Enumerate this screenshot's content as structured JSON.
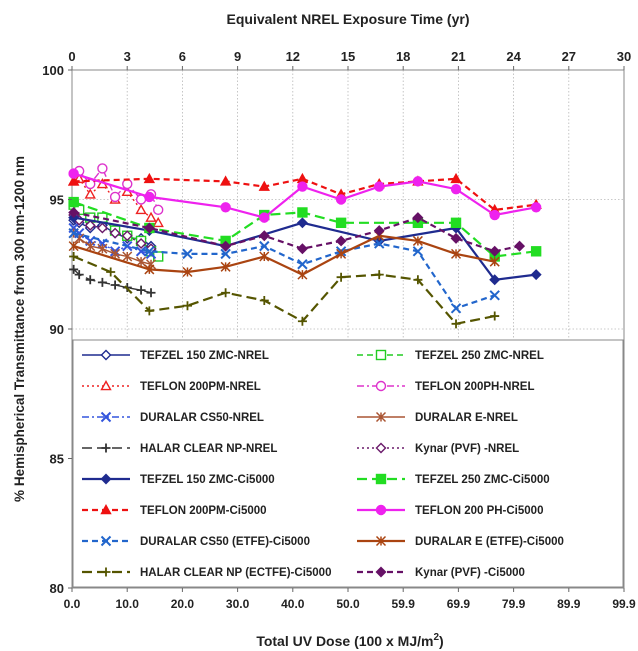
{
  "chart_data": {
    "type": "line",
    "title": "",
    "top_axis_label": "Equivalent  NREL Exposure Time (yr)",
    "top_ticks": [
      "0",
      "3",
      "6",
      "9",
      "12",
      "15",
      "18",
      "21",
      "24",
      "27",
      "30"
    ],
    "xlabel": "Total UV Dose  (100 x MJ/m2)",
    "xlabel_main": "Total UV Dose  (100 x MJ/m",
    "xlabel_sup": "2",
    "xlabel_end": ")",
    "x_ticks": [
      "0.0",
      "10.0",
      "20.0",
      "30.0",
      "40.0",
      "50.0",
      "59.9",
      "69.9",
      "79.9",
      "89.9",
      "99.9"
    ],
    "xlim": [
      0,
      99.9
    ],
    "ylabel": "% Hemispherical Transmittance from 300 nm-1200 nm",
    "y_ticks": [
      "80",
      "85",
      "90",
      "95",
      "100"
    ],
    "ylim": [
      80,
      100
    ],
    "grid": "dotted horizontal and vertical",
    "legend_position": "lower half of plot area, two columns",
    "series": [
      {
        "name": "TEFZEL 150 ZMC-NREL",
        "color": "#1f2b8f",
        "dash": "solid",
        "marker": "diamond-open",
        "points": [
          [
            0.3,
            94.2
          ],
          [
            1.3,
            94.1
          ],
          [
            3.3,
            93.9
          ],
          [
            5.5,
            94.0
          ],
          [
            7.8,
            93.7
          ],
          [
            10.0,
            93.5
          ],
          [
            12.5,
            93.5
          ],
          [
            14.3,
            93.2
          ]
        ]
      },
      {
        "name": "TEFZEL 250 ZMC-NREL",
        "color": "#22cc22",
        "dash": "dash",
        "marker": "square-open",
        "points": [
          [
            0.3,
            94.8
          ],
          [
            1.3,
            94.6
          ],
          [
            3.3,
            94.3
          ],
          [
            5.5,
            94.3
          ],
          [
            7.8,
            93.8
          ],
          [
            10.0,
            93.6
          ],
          [
            12.5,
            93.4
          ],
          [
            14.3,
            93.0
          ],
          [
            15.6,
            92.8
          ]
        ]
      },
      {
        "name": "TEFLON 200PM-NREL",
        "color": "#ee2222",
        "dash": "dot",
        "marker": "triangle-open",
        "points": [
          [
            0.3,
            95.7
          ],
          [
            1.3,
            95.8
          ],
          [
            3.3,
            95.2
          ],
          [
            5.5,
            95.6
          ],
          [
            7.8,
            95.0
          ],
          [
            10.0,
            95.3
          ],
          [
            12.5,
            94.6
          ],
          [
            14.3,
            94.3
          ],
          [
            15.6,
            94.1
          ]
        ]
      },
      {
        "name": "TEFLON 200PH-NREL",
        "color": "#dd33cc",
        "dash": "dashdot",
        "marker": "circle-open",
        "points": [
          [
            0.3,
            96.0
          ],
          [
            1.3,
            96.1
          ],
          [
            3.3,
            95.6
          ],
          [
            5.5,
            96.2
          ],
          [
            7.8,
            95.1
          ],
          [
            10.0,
            95.6
          ],
          [
            12.5,
            95.0
          ],
          [
            14.3,
            95.2
          ],
          [
            15.6,
            94.6
          ]
        ]
      },
      {
        "name": "DURALAR CS50-NREL",
        "color": "#3355dd",
        "dash": "dashdot",
        "marker": "x",
        "points": [
          [
            0.3,
            93.9
          ],
          [
            1.3,
            93.7
          ],
          [
            3.3,
            93.4
          ],
          [
            5.5,
            93.3
          ],
          [
            7.8,
            93.0
          ],
          [
            10.0,
            93.2
          ],
          [
            12.5,
            93.0
          ],
          [
            14.3,
            92.9
          ]
        ]
      },
      {
        "name": "DURALAR E-NREL",
        "color": "#aa5533",
        "dash": "solid",
        "marker": "asterisk",
        "points": [
          [
            0.3,
            93.7
          ],
          [
            1.3,
            93.5
          ],
          [
            3.3,
            93.2
          ],
          [
            5.5,
            93.1
          ],
          [
            7.8,
            92.9
          ],
          [
            10.0,
            92.8
          ],
          [
            12.5,
            92.6
          ],
          [
            14.3,
            92.5
          ]
        ]
      },
      {
        "name": "HALAR CLEAR NP-NREL",
        "color": "#333333",
        "dash": "longdash",
        "marker": "plus",
        "points": [
          [
            0.3,
            92.3
          ],
          [
            1.3,
            92.1
          ],
          [
            3.3,
            91.9
          ],
          [
            5.5,
            91.8
          ],
          [
            7.8,
            91.7
          ],
          [
            10.0,
            91.6
          ],
          [
            12.5,
            91.5
          ],
          [
            14.3,
            91.4
          ]
        ]
      },
      {
        "name": "Kynar (PVF) -NREL",
        "color": "#6a1a6a",
        "dash": "dot",
        "marker": "diamond-open",
        "points": [
          [
            0.3,
            94.4
          ],
          [
            1.3,
            94.2
          ],
          [
            3.3,
            94.0
          ],
          [
            5.5,
            93.9
          ],
          [
            7.8,
            93.7
          ],
          [
            10.0,
            93.6
          ],
          [
            12.5,
            93.3
          ],
          [
            14.3,
            93.1
          ]
        ]
      },
      {
        "name": "TEFZEL 150 ZMC-Ci5000",
        "color": "#1f2b8f",
        "dash": "solid",
        "marker": "diamond",
        "points": [
          [
            0.3,
            94.3
          ],
          [
            14.0,
            93.8
          ],
          [
            27.8,
            93.2
          ],
          [
            41.7,
            94.1
          ],
          [
            55.6,
            93.4
          ],
          [
            69.5,
            93.9
          ],
          [
            76.5,
            91.9
          ],
          [
            84.0,
            92.1
          ]
        ]
      },
      {
        "name": "TEFZEL 250 ZMC-Ci5000",
        "color": "#22dd22",
        "dash": "longdash",
        "marker": "square",
        "points": [
          [
            0.3,
            94.9
          ],
          [
            14.0,
            93.9
          ],
          [
            27.8,
            93.4
          ],
          [
            34.8,
            94.4
          ],
          [
            41.7,
            94.5
          ],
          [
            48.7,
            94.1
          ],
          [
            62.6,
            94.1
          ],
          [
            69.5,
            94.1
          ],
          [
            76.5,
            92.8
          ],
          [
            84.0,
            93.0
          ]
        ]
      },
      {
        "name": "TEFLON 200PM-Ci5000",
        "color": "#ee1111",
        "dash": "dash",
        "marker": "triangle",
        "points": [
          [
            0.3,
            95.7
          ],
          [
            14.0,
            95.8
          ],
          [
            27.8,
            95.7
          ],
          [
            34.8,
            95.5
          ],
          [
            41.7,
            95.8
          ],
          [
            48.7,
            95.2
          ],
          [
            55.6,
            95.6
          ],
          [
            62.6,
            95.7
          ],
          [
            69.5,
            95.8
          ],
          [
            76.5,
            94.6
          ],
          [
            84.0,
            94.8
          ]
        ]
      },
      {
        "name": "TEFLON 200 PH-Ci5000",
        "color": "#ee22ee",
        "dash": "solid",
        "marker": "circle",
        "points": [
          [
            0.3,
            96.0
          ],
          [
            14.0,
            95.1
          ],
          [
            27.8,
            94.7
          ],
          [
            34.8,
            94.3
          ],
          [
            41.7,
            95.5
          ],
          [
            48.7,
            95.0
          ],
          [
            55.6,
            95.5
          ],
          [
            62.6,
            95.7
          ],
          [
            69.5,
            95.4
          ],
          [
            76.5,
            94.4
          ],
          [
            84.0,
            94.7
          ]
        ]
      },
      {
        "name": "DURALAR CS50 (ETFE)-Ci5000",
        "color": "#2266cc",
        "dash": "dash",
        "marker": "x",
        "points": [
          [
            0.3,
            93.7
          ],
          [
            14.0,
            93.0
          ],
          [
            20.9,
            92.9
          ],
          [
            27.8,
            92.9
          ],
          [
            34.8,
            93.2
          ],
          [
            41.7,
            92.5
          ],
          [
            48.7,
            93.0
          ],
          [
            55.6,
            93.3
          ],
          [
            62.6,
            93.0
          ],
          [
            69.5,
            90.8
          ],
          [
            76.5,
            91.3
          ]
        ]
      },
      {
        "name": "DURALAR E (ETFE)-Ci5000",
        "color": "#aa4411",
        "dash": "solid",
        "marker": "asterisk",
        "points": [
          [
            0.3,
            93.2
          ],
          [
            14.0,
            92.3
          ],
          [
            20.9,
            92.2
          ],
          [
            27.8,
            92.4
          ],
          [
            34.8,
            92.8
          ],
          [
            41.7,
            92.1
          ],
          [
            48.7,
            92.9
          ],
          [
            55.6,
            93.6
          ],
          [
            62.6,
            93.4
          ],
          [
            69.5,
            92.9
          ],
          [
            76.5,
            92.6
          ]
        ]
      },
      {
        "name": "HALAR CLEAR NP (ECTFE)-Ci5000",
        "color": "#555500",
        "dash": "longdash",
        "marker": "plus",
        "points": [
          [
            0.3,
            92.8
          ],
          [
            7.0,
            92.2
          ],
          [
            14.0,
            90.7
          ],
          [
            20.9,
            90.9
          ],
          [
            27.8,
            91.4
          ],
          [
            34.8,
            91.1
          ],
          [
            41.7,
            90.3
          ],
          [
            48.7,
            92.0
          ],
          [
            55.6,
            92.1
          ],
          [
            62.6,
            91.9
          ],
          [
            69.5,
            90.2
          ],
          [
            76.5,
            90.5
          ]
        ]
      },
      {
        "name": "Kynar (PVF) -Ci5000",
        "color": "#661166",
        "dash": "dash",
        "marker": "diamond",
        "points": [
          [
            0.3,
            94.5
          ],
          [
            14.0,
            93.9
          ],
          [
            27.8,
            93.2
          ],
          [
            34.8,
            93.6
          ],
          [
            41.7,
            93.1
          ],
          [
            48.7,
            93.4
          ],
          [
            55.6,
            93.8
          ],
          [
            62.6,
            94.3
          ],
          [
            69.5,
            93.5
          ],
          [
            76.5,
            93.0
          ],
          [
            81.0,
            93.2
          ]
        ]
      }
    ]
  }
}
